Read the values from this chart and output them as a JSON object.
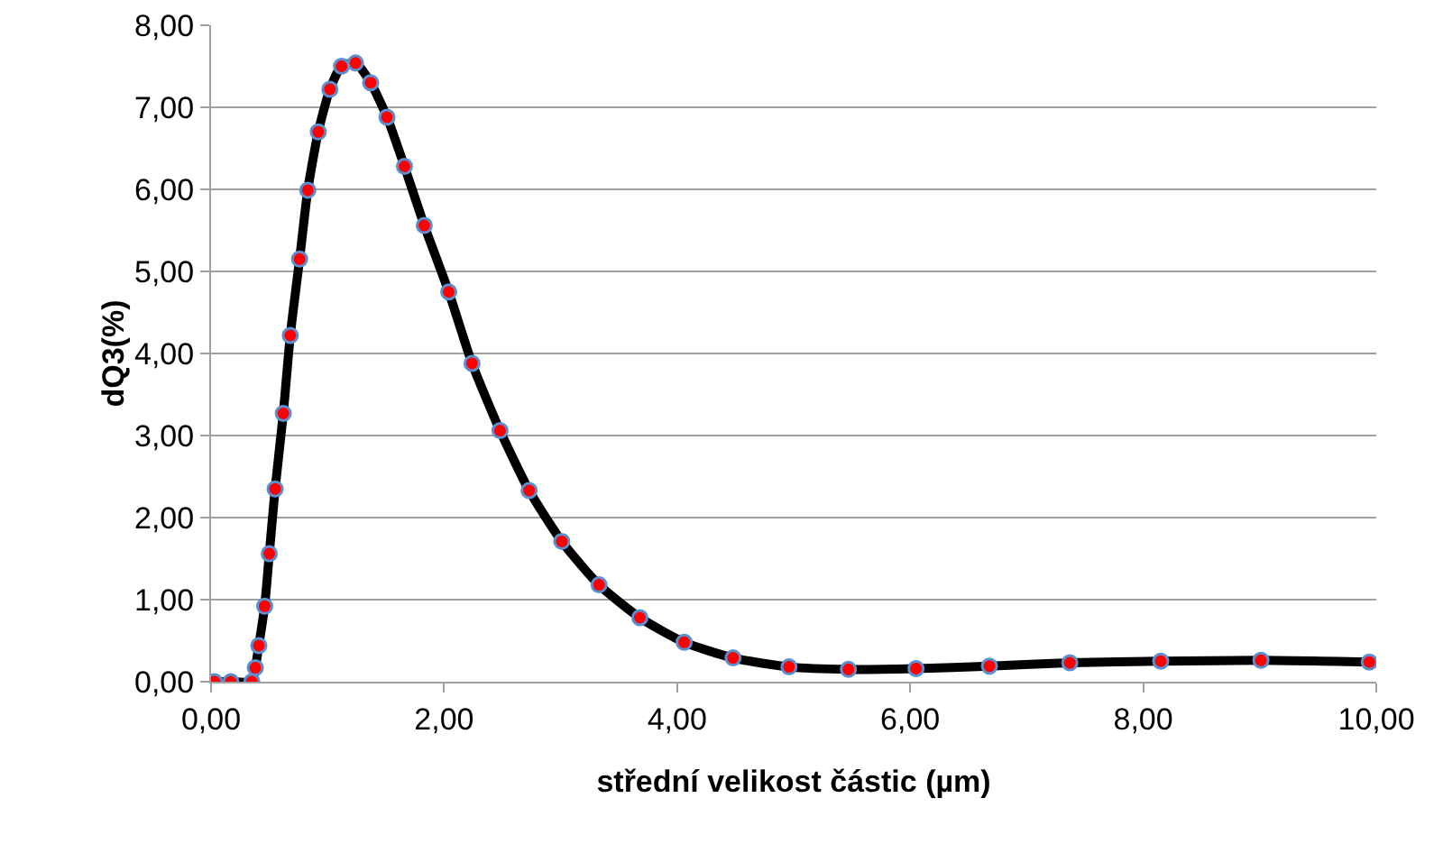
{
  "chart_data": {
    "type": "line",
    "xlabel": "střední velikost částic (µm)",
    "ylabel": "dQ3(%)",
    "series": [
      {
        "color": "#000000",
        "x": [
          0.03,
          0.17,
          0.35,
          0.38,
          0.41,
          0.46,
          0.5,
          0.55,
          0.62,
          0.68,
          0.76,
          0.83,
          0.92,
          1.02,
          1.12,
          1.24,
          1.37,
          1.51,
          1.66,
          1.83,
          2.04,
          2.24,
          2.48,
          2.73,
          3.01,
          3.33,
          3.68,
          4.06,
          4.48,
          4.96,
          5.47,
          6.05,
          6.68,
          7.37,
          8.15,
          9.01,
          9.94
        ],
        "values": [
          0,
          0,
          0,
          0.17,
          0.44,
          0.92,
          1.56,
          2.35,
          3.27,
          4.22,
          5.15,
          5.99,
          6.7,
          7.22,
          7.5,
          7.54,
          7.3,
          6.88,
          6.28,
          5.56,
          4.75,
          3.88,
          3.06,
          2.33,
          1.71,
          1.18,
          0.78,
          0.48,
          0.29,
          0.18,
          0.15,
          0.16,
          0.19,
          0.23,
          0.25,
          0.26,
          0.24
        ]
      }
    ],
    "marker": "circle",
    "line_style": "solid",
    "grid": "y",
    "xlim": [
      0,
      10
    ],
    "xticks": [
      {
        "value": 0,
        "label": "0,00"
      },
      {
        "value": 2,
        "label": "2,00"
      },
      {
        "value": 4,
        "label": "4,00"
      },
      {
        "value": 6,
        "label": "6,00"
      },
      {
        "value": 8,
        "label": "8,00"
      },
      {
        "value": 10,
        "label": "10,00"
      }
    ],
    "ylim": [
      0,
      8
    ],
    "yticks": [
      {
        "value": 0,
        "label": "0,00"
      },
      {
        "value": 1,
        "label": "1,00"
      },
      {
        "value": 2,
        "label": "2,00"
      },
      {
        "value": 3,
        "label": "3,00"
      },
      {
        "value": 4,
        "label": "4,00"
      },
      {
        "value": 5,
        "label": "5,00"
      },
      {
        "value": 6,
        "label": "6,00"
      },
      {
        "value": 7,
        "label": "7,00"
      },
      {
        "value": 8,
        "label": "8,00"
      }
    ]
  }
}
